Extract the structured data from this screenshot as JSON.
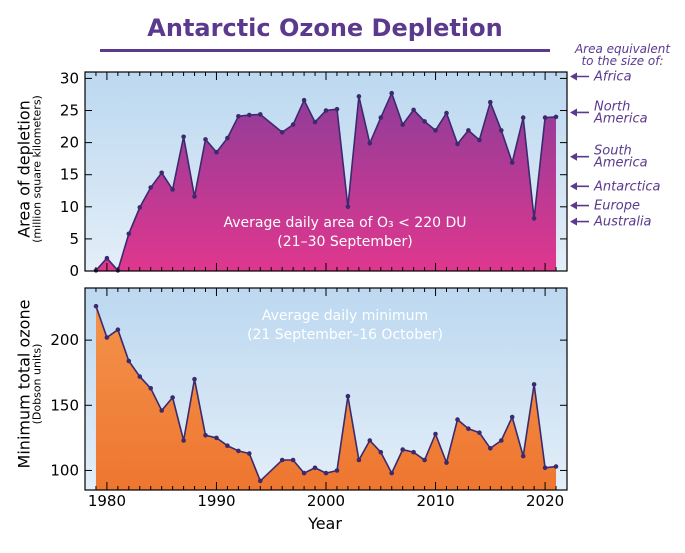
{
  "title": "Antarctic Ozone Depletion",
  "equivalent": {
    "title_line1": "Area equivalent",
    "title_line2": "to the size of:",
    "items": [
      {
        "lines": [
          "Africa"
        ],
        "value": 30.3
      },
      {
        "lines": [
          "North",
          "America"
        ],
        "value": 24.7
      },
      {
        "lines": [
          "South",
          "America"
        ],
        "value": 17.8
      },
      {
        "lines": [
          "Antarctica"
        ],
        "value": 13.2
      },
      {
        "lines": [
          "Europe"
        ],
        "value": 10.2
      },
      {
        "lines": [
          "Australia"
        ],
        "value": 7.7
      }
    ]
  },
  "colors": {
    "line": "#3b2a6e",
    "area_top": "#8f3d99",
    "area_bottom": "#e0378e",
    "sky_top": "#bcd8f0",
    "sky_bottom": "#e3eef8",
    "orange_top": "#f3924a",
    "orange_bottom": "#ee7630",
    "accent": "#5b3a8e"
  },
  "chart_data": [
    {
      "type": "area",
      "annotation": [
        "Average daily area of O₃ < 220 DU",
        "(21–30 September)"
      ],
      "ylabel": "Area of depletion",
      "ylabel_sub": "(million square kilometers)",
      "xlabel": "",
      "ylim": [
        0,
        31
      ],
      "yticks": [
        0,
        5,
        10,
        15,
        20,
        25,
        30
      ],
      "xlim": [
        1978,
        2022
      ],
      "x": [
        1979,
        1980,
        1981,
        1982,
        1983,
        1984,
        1985,
        1986,
        1987,
        1988,
        1989,
        1990,
        1991,
        1992,
        1993,
        1994,
        1996,
        1997,
        1998,
        1999,
        2000,
        2001,
        2002,
        2003,
        2004,
        2005,
        2006,
        2007,
        2008,
        2009,
        2010,
        2011,
        2012,
        2013,
        2014,
        2015,
        2016,
        2017,
        2018,
        2019,
        2020,
        2021
      ],
      "y": [
        0.1,
        2.0,
        0.1,
        5.8,
        9.9,
        13.0,
        15.3,
        12.7,
        20.9,
        11.6,
        20.5,
        18.5,
        20.7,
        24.1,
        24.3,
        24.4,
        21.6,
        22.8,
        26.6,
        23.2,
        25.0,
        25.2,
        10.0,
        27.2,
        19.9,
        23.9,
        27.7,
        22.8,
        25.1,
        23.3,
        21.9,
        24.6,
        19.8,
        21.9,
        20.4,
        26.3,
        21.9,
        16.9,
        23.9,
        8.2,
        23.9,
        24.0
      ]
    },
    {
      "type": "area",
      "annotation": [
        "Average daily minimum",
        "(21 September–16 October)"
      ],
      "ylabel": "Minimum total ozone",
      "ylabel_sub": "(Dobson units)",
      "xlabel": "Year",
      "ylim": [
        85,
        240
      ],
      "yticks": [
        100,
        150,
        200
      ],
      "xlim": [
        1978,
        2022
      ],
      "xticks": [
        1980,
        1990,
        2000,
        2010,
        2020
      ],
      "x": [
        1979,
        1980,
        1981,
        1982,
        1983,
        1984,
        1985,
        1986,
        1987,
        1988,
        1989,
        1990,
        1991,
        1992,
        1993,
        1994,
        1996,
        1997,
        1998,
        1999,
        2000,
        2001,
        2002,
        2003,
        2004,
        2005,
        2006,
        2007,
        2008,
        2009,
        2010,
        2011,
        2012,
        2013,
        2014,
        2015,
        2016,
        2017,
        2018,
        2019,
        2020,
        2021
      ],
      "y": [
        226,
        202,
        208,
        184,
        172,
        163,
        146,
        156,
        123,
        170,
        127,
        125,
        119,
        115,
        113,
        92,
        108,
        108,
        98,
        102,
        98,
        100,
        157,
        108,
        123,
        114,
        98,
        116,
        114,
        108,
        128,
        106,
        139,
        132,
        129,
        117,
        123,
        141,
        111,
        166,
        102,
        103
      ]
    }
  ]
}
